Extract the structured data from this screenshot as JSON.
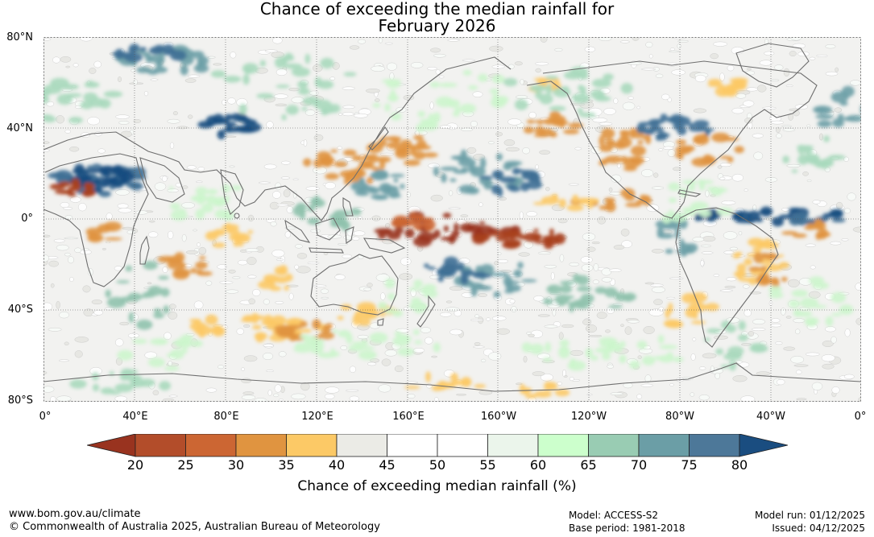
{
  "title": {
    "line1": "Chance of exceeding the median rainfall for",
    "line2": "February 2026"
  },
  "map": {
    "latitude_labels": [
      "80°N",
      "40°N",
      "0°",
      "40°S",
      "80°S"
    ],
    "longitude_labels": [
      "0°",
      "40°E",
      "80°E",
      "120°E",
      "160°E",
      "160°W",
      "120°W",
      "80°W",
      "40°W",
      "0°"
    ]
  },
  "colorbar": {
    "ticks": [
      "20",
      "25",
      "30",
      "35",
      "40",
      "45",
      "50",
      "55",
      "60",
      "65",
      "70",
      "75",
      "80"
    ],
    "colors": [
      "#99331f",
      "#b34d2a",
      "#cc6633",
      "#e09440",
      "#fcc966",
      "#ebebe6",
      "#ffffff",
      "#ffffff",
      "#ebf5eb",
      "#ccffcc",
      "#99ccb3",
      "#6b9ea6",
      "#4d7899",
      "#1a4d80"
    ],
    "label": "Chance of exceeding median rainfall (%)"
  },
  "footer": {
    "url": "www.bom.gov.au/climate",
    "copyright": "© Commonwealth of Australia 2025, Australian Bureau of Meteorology",
    "model": "Model: ACCESS-S2",
    "base_period": "Base period: 1981-2018",
    "model_run": "Model run: 01/12/2025",
    "issued": "Issued: 04/12/2025"
  }
}
